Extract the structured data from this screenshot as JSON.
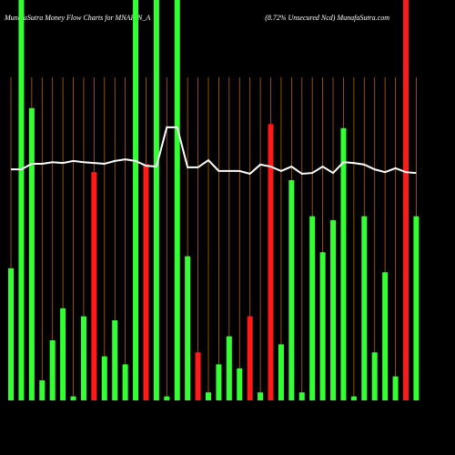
{
  "chart_data": {
    "type": "bar",
    "title": "MunafaSutra  Money Flow  Charts for MNAFIN_A",
    "subtitle": "(8.72% Unsecured Ncd) MunafaSutra.com",
    "categories": [
      null,
      null,
      null,
      null,
      null,
      null,
      null,
      null,
      null,
      null,
      null,
      null,
      null,
      null,
      null,
      null,
      null,
      null,
      null,
      null,
      null,
      null,
      null,
      null,
      null,
      null,
      null,
      null,
      null,
      null,
      null,
      null,
      null,
      null,
      null,
      null,
      null,
      null,
      null,
      null
    ],
    "values": [
      33,
      100,
      73,
      5,
      15,
      23,
      1,
      21,
      57,
      11,
      20,
      9,
      100,
      59,
      100,
      1,
      100,
      36,
      12,
      2,
      9,
      16,
      8,
      21,
      2,
      69,
      14,
      55,
      2,
      46,
      37,
      45,
      68,
      1,
      46,
      12,
      32,
      6,
      100,
      46
    ],
    "colors": [
      "#33ff33",
      "#33ff33",
      "#33ff33",
      "#33ff33",
      "#33ff33",
      "#33ff33",
      "#33ff33",
      "#33ff33",
      "#ff1a1a",
      "#33ff33",
      "#33ff33",
      "#33ff33",
      "#33ff33",
      "#ff1a1a",
      "#33ff33",
      "#33ff33",
      "#33ff33",
      "#33ff33",
      "#ff1a1a",
      "#33ff33",
      "#33ff33",
      "#33ff33",
      "#33ff33",
      "#ff1a1a",
      "#33ff33",
      "#ff1a1a",
      "#33ff33",
      "#33ff33",
      "#33ff33",
      "#33ff33",
      "#33ff33",
      "#33ff33",
      "#33ff33",
      "#33ff33",
      "#33ff33",
      "#33ff33",
      "#33ff33",
      "#33ff33",
      "#ff1a1a",
      "#33ff33"
    ],
    "line_values": [
      57.7,
      57.7,
      59.1,
      59.1,
      59.5,
      59.3,
      59.8,
      59.5,
      59.3,
      59.1,
      59.8,
      60.2,
      59.8,
      58.6,
      58.4,
      68.2,
      68.2,
      58.2,
      58.2,
      60.0,
      57.3,
      57.3,
      57.3,
      56.6,
      58.9,
      58.4,
      57.3,
      58.4,
      56.6,
      56.8,
      58.4,
      56.8,
      59.5,
      59.3,
      58.9,
      57.7,
      57.0,
      58.0,
      57.0,
      56.8
    ],
    "line_color": "#ffffff",
    "ylim": [
      0,
      100
    ]
  }
}
